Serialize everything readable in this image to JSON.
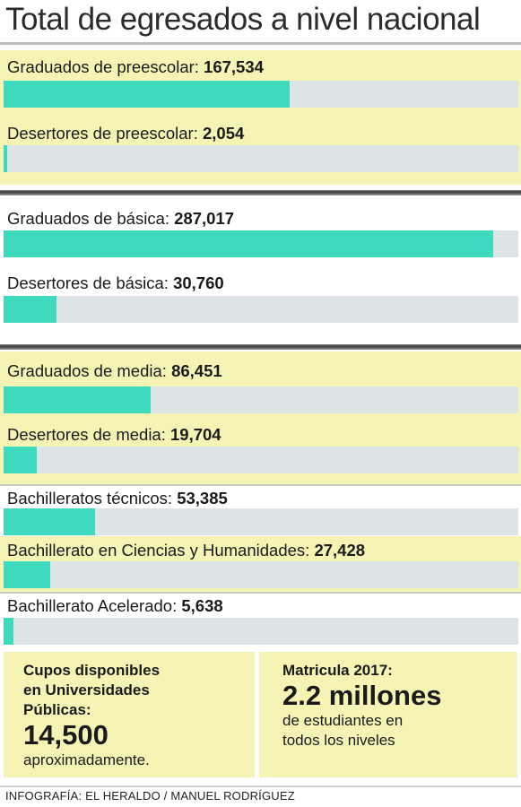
{
  "chart_data": {
    "type": "bar",
    "orientation": "horizontal",
    "title": "Total de egresados a nivel nacional",
    "bar_max_value": 287017,
    "categories": [
      "Graduados de preescolar:",
      "Desertores de preescolar:",
      "Graduados de básica:",
      "Desertores de básica:",
      "Graduados de media:",
      "Desertores de media:",
      "Bachilleratos técnicos:",
      "Bachillerato en Ciencias y Humanidades:",
      "Bachillerato Acelerado:"
    ],
    "values": [
      167534,
      2054,
      287017,
      30760,
      86451,
      19704,
      53385,
      27428,
      5638
    ],
    "value_labels": [
      "167,534",
      "2,054",
      "287,017",
      "30,760",
      "86,451",
      "19,704",
      "53,385",
      "27,428",
      "5,638"
    ]
  },
  "info": {
    "cupos": {
      "line1": "Cupos disponibles",
      "line2": "en Universidades",
      "line3": "Públicas:",
      "number": "14,500",
      "suffix": "aproximadamente."
    },
    "matricula": {
      "line1": "Matricula 2017:",
      "number": "2.2 millones",
      "line2": "de estudiantes en",
      "line3": "todos los niveles"
    }
  },
  "credit": "INFOGRAFÍA: EL HERALDO / MANUEL RODRÍGUEZ",
  "colors": {
    "bar": "#3fd9be",
    "track": "#dde4e6",
    "panel": "#f6f4b5"
  }
}
